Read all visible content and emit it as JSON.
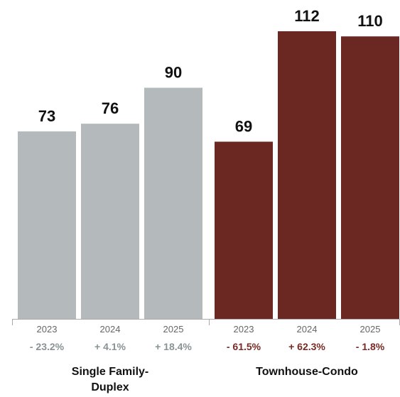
{
  "chart_data": {
    "type": "bar",
    "title": "",
    "xlabel": "",
    "ylabel": "",
    "ylim": [
      0,
      115
    ],
    "grid": false,
    "legend": "none",
    "groups": [
      {
        "name": "Single Family-\nDuplex",
        "name_lines": [
          "Single Family-",
          "Duplex"
        ],
        "color": "#b4babb",
        "pct_color": "#8a9394",
        "categories": [
          "2023",
          "2024",
          "2025"
        ],
        "values": [
          73,
          76,
          90
        ],
        "value_labels": [
          "73",
          "76",
          "90"
        ],
        "changes": [
          "- 23.2%",
          "+ 4.1%",
          "+ 18.4%"
        ]
      },
      {
        "name": "Townhouse-Condo",
        "name_lines": [
          "Townhouse-Condo"
        ],
        "color": "#6b2822",
        "pct_color": "#7a2a24",
        "categories": [
          "2023",
          "2024",
          "2025"
        ],
        "values": [
          69,
          112,
          110
        ],
        "value_labels": [
          "69",
          "112",
          "110"
        ],
        "changes": [
          "- 61.5%",
          "+ 62.3%",
          "- 1.8%"
        ]
      }
    ]
  }
}
